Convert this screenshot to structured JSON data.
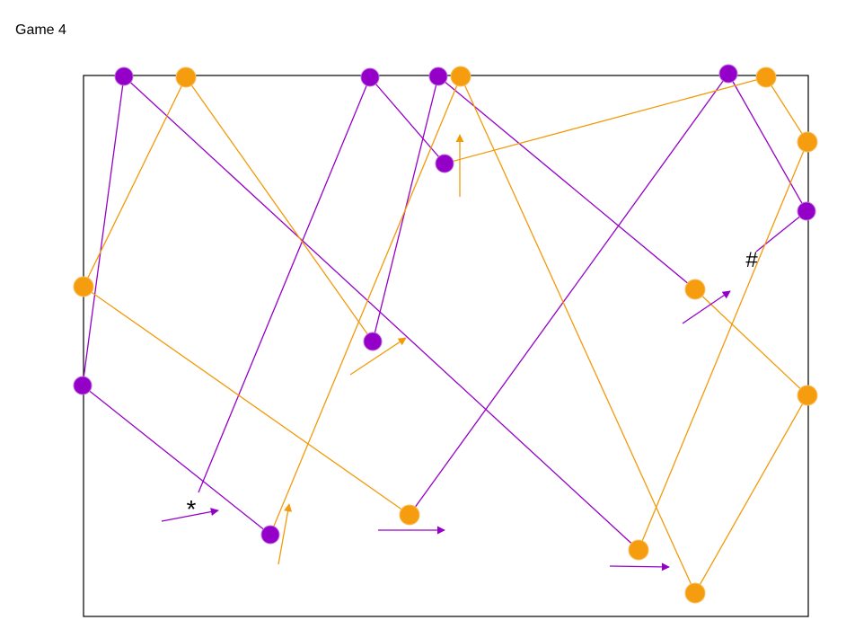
{
  "header": {
    "title": "Game 4"
  },
  "board": {
    "marks": [
      "*",
      "#"
    ]
  }
}
